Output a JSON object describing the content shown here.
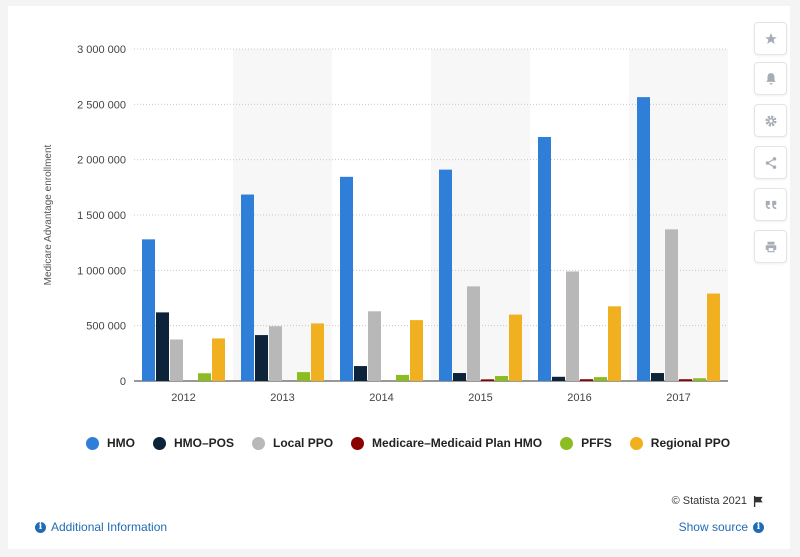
{
  "chart_data": {
    "type": "bar",
    "ylabel": "Medicare Advantage enrollment",
    "xlabel": "",
    "ylim": [
      0,
      3000000
    ],
    "yticks": [
      0,
      500000,
      1000000,
      1500000,
      2000000,
      2500000,
      3000000
    ],
    "ytick_labels": [
      "0",
      "500 000",
      "1 000 000",
      "1 500 000",
      "2 000 000",
      "2 500 000",
      "3 000 000"
    ],
    "categories": [
      "2012",
      "2013",
      "2014",
      "2015",
      "2016",
      "2017"
    ],
    "grid": "horizontal dotted",
    "legend_position": "bottom",
    "series": [
      {
        "name": "HMO",
        "color": "#2f7ed8",
        "values": [
          1280000,
          1685000,
          1845000,
          1910000,
          2205000,
          2565000
        ]
      },
      {
        "name": "HMO–POS",
        "color": "#0d233a",
        "values": [
          620000,
          415000,
          135000,
          72000,
          38000,
          72000
        ]
      },
      {
        "name": "Local PPO",
        "color": "#b8b8b8",
        "values": [
          375000,
          495000,
          630000,
          855000,
          990000,
          1370000
        ]
      },
      {
        "name": "Medicare–Medicaid Plan HMO",
        "color": "#8b0000",
        "values": [
          0,
          0,
          0,
          15000,
          16000,
          16000
        ]
      },
      {
        "name": "PFFS",
        "color": "#8bbc21",
        "values": [
          70000,
          80000,
          55000,
          45000,
          35000,
          25000
        ]
      },
      {
        "name": "Regional PPO",
        "color": "#f0b020",
        "values": [
          385000,
          520000,
          550000,
          600000,
          675000,
          790000
        ]
      }
    ]
  },
  "footer": {
    "copyright": "© Statista 2021",
    "additional_info": "Additional Information",
    "show_source": "Show source"
  },
  "sidebar_icons": [
    "star-icon",
    "bell-icon",
    "gear-icon",
    "share-icon",
    "quote-icon",
    "print-icon"
  ]
}
